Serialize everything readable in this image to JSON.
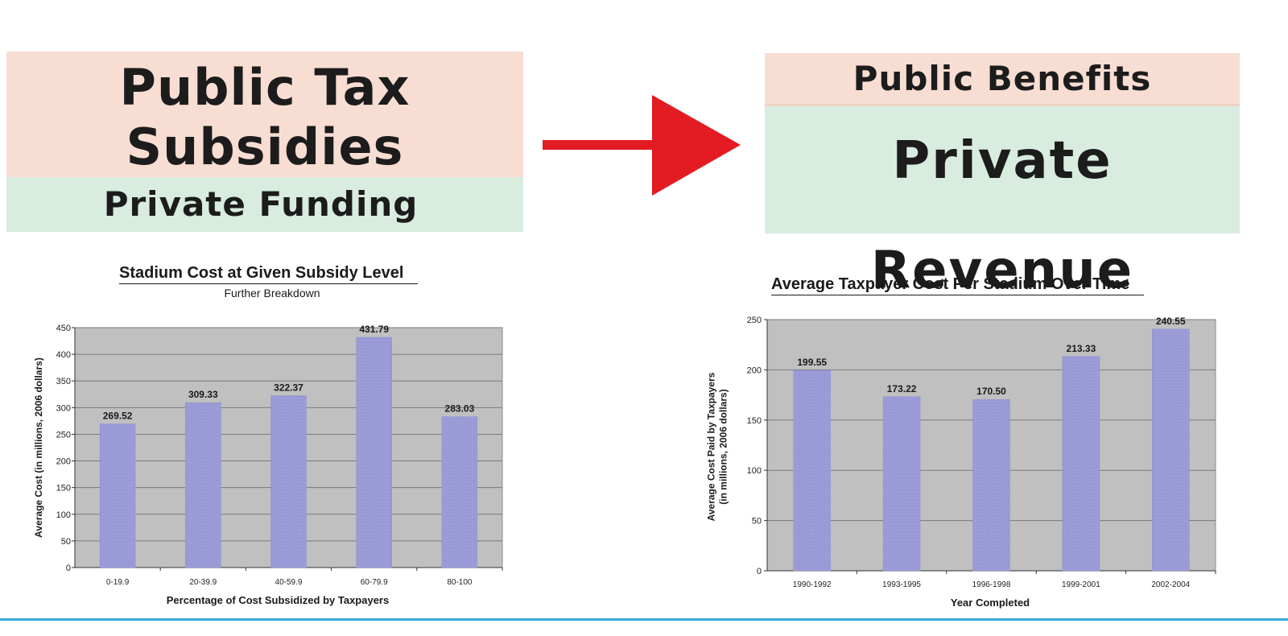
{
  "diagram": {
    "left": {
      "top_lines": [
        "Public Tax",
        "Subsidies"
      ],
      "bottom": "Private Funding"
    },
    "right": {
      "top": "Public Benefits",
      "bottom": "Private Revenue"
    },
    "colors": {
      "pink": "#f8ddd2",
      "green": "#d8ece0",
      "arrow": "#e31b23"
    }
  },
  "chart_data": [
    {
      "type": "bar",
      "title": "Stadium Cost at Given Subsidy Level",
      "subtitle": "Further Breakdown",
      "xlabel": "Percentage of Cost Subsidized by Taxpayers",
      "ylabel": "Average Cost (in millions, 2006 dollars)",
      "categories": [
        "0-19.9",
        "20-39.9",
        "40-59.9",
        "60-79.9",
        "80-100"
      ],
      "values": [
        269.52,
        309.33,
        322.37,
        431.79,
        283.03
      ],
      "value_labels": [
        "269.52",
        "309.33",
        "322.37",
        "431.79",
        "283.03"
      ],
      "ylim": [
        0,
        450
      ],
      "yticks": [
        0,
        50,
        100,
        150,
        200,
        250,
        300,
        350,
        400,
        450
      ],
      "grid": true,
      "bar_color": "#9b9cd8",
      "plot_bg": "#c0c0c0"
    },
    {
      "type": "bar",
      "title": "Average Taxpayer Cost Per Stadium Over Time",
      "xlabel": "Year Completed",
      "ylabel": "Average Cost Paid by Taxpayers (in millions, 2006 dollars)",
      "ylabel_lines": [
        "Average Cost Paid by Taxpayers",
        "(in millions, 2006 dollars)"
      ],
      "categories": [
        "1990-1992",
        "1993-1995",
        "1996-1998",
        "1999-2001",
        "2002-2004"
      ],
      "values": [
        199.55,
        173.22,
        170.5,
        213.33,
        240.55
      ],
      "value_labels": [
        "199.55",
        "173.22",
        "170.50",
        "213.33",
        "240.55"
      ],
      "ylim": [
        0,
        250
      ],
      "yticks": [
        0,
        50,
        100,
        150,
        200,
        250
      ],
      "grid": true,
      "bar_color": "#9b9cd8",
      "plot_bg": "#c0c0c0"
    }
  ]
}
